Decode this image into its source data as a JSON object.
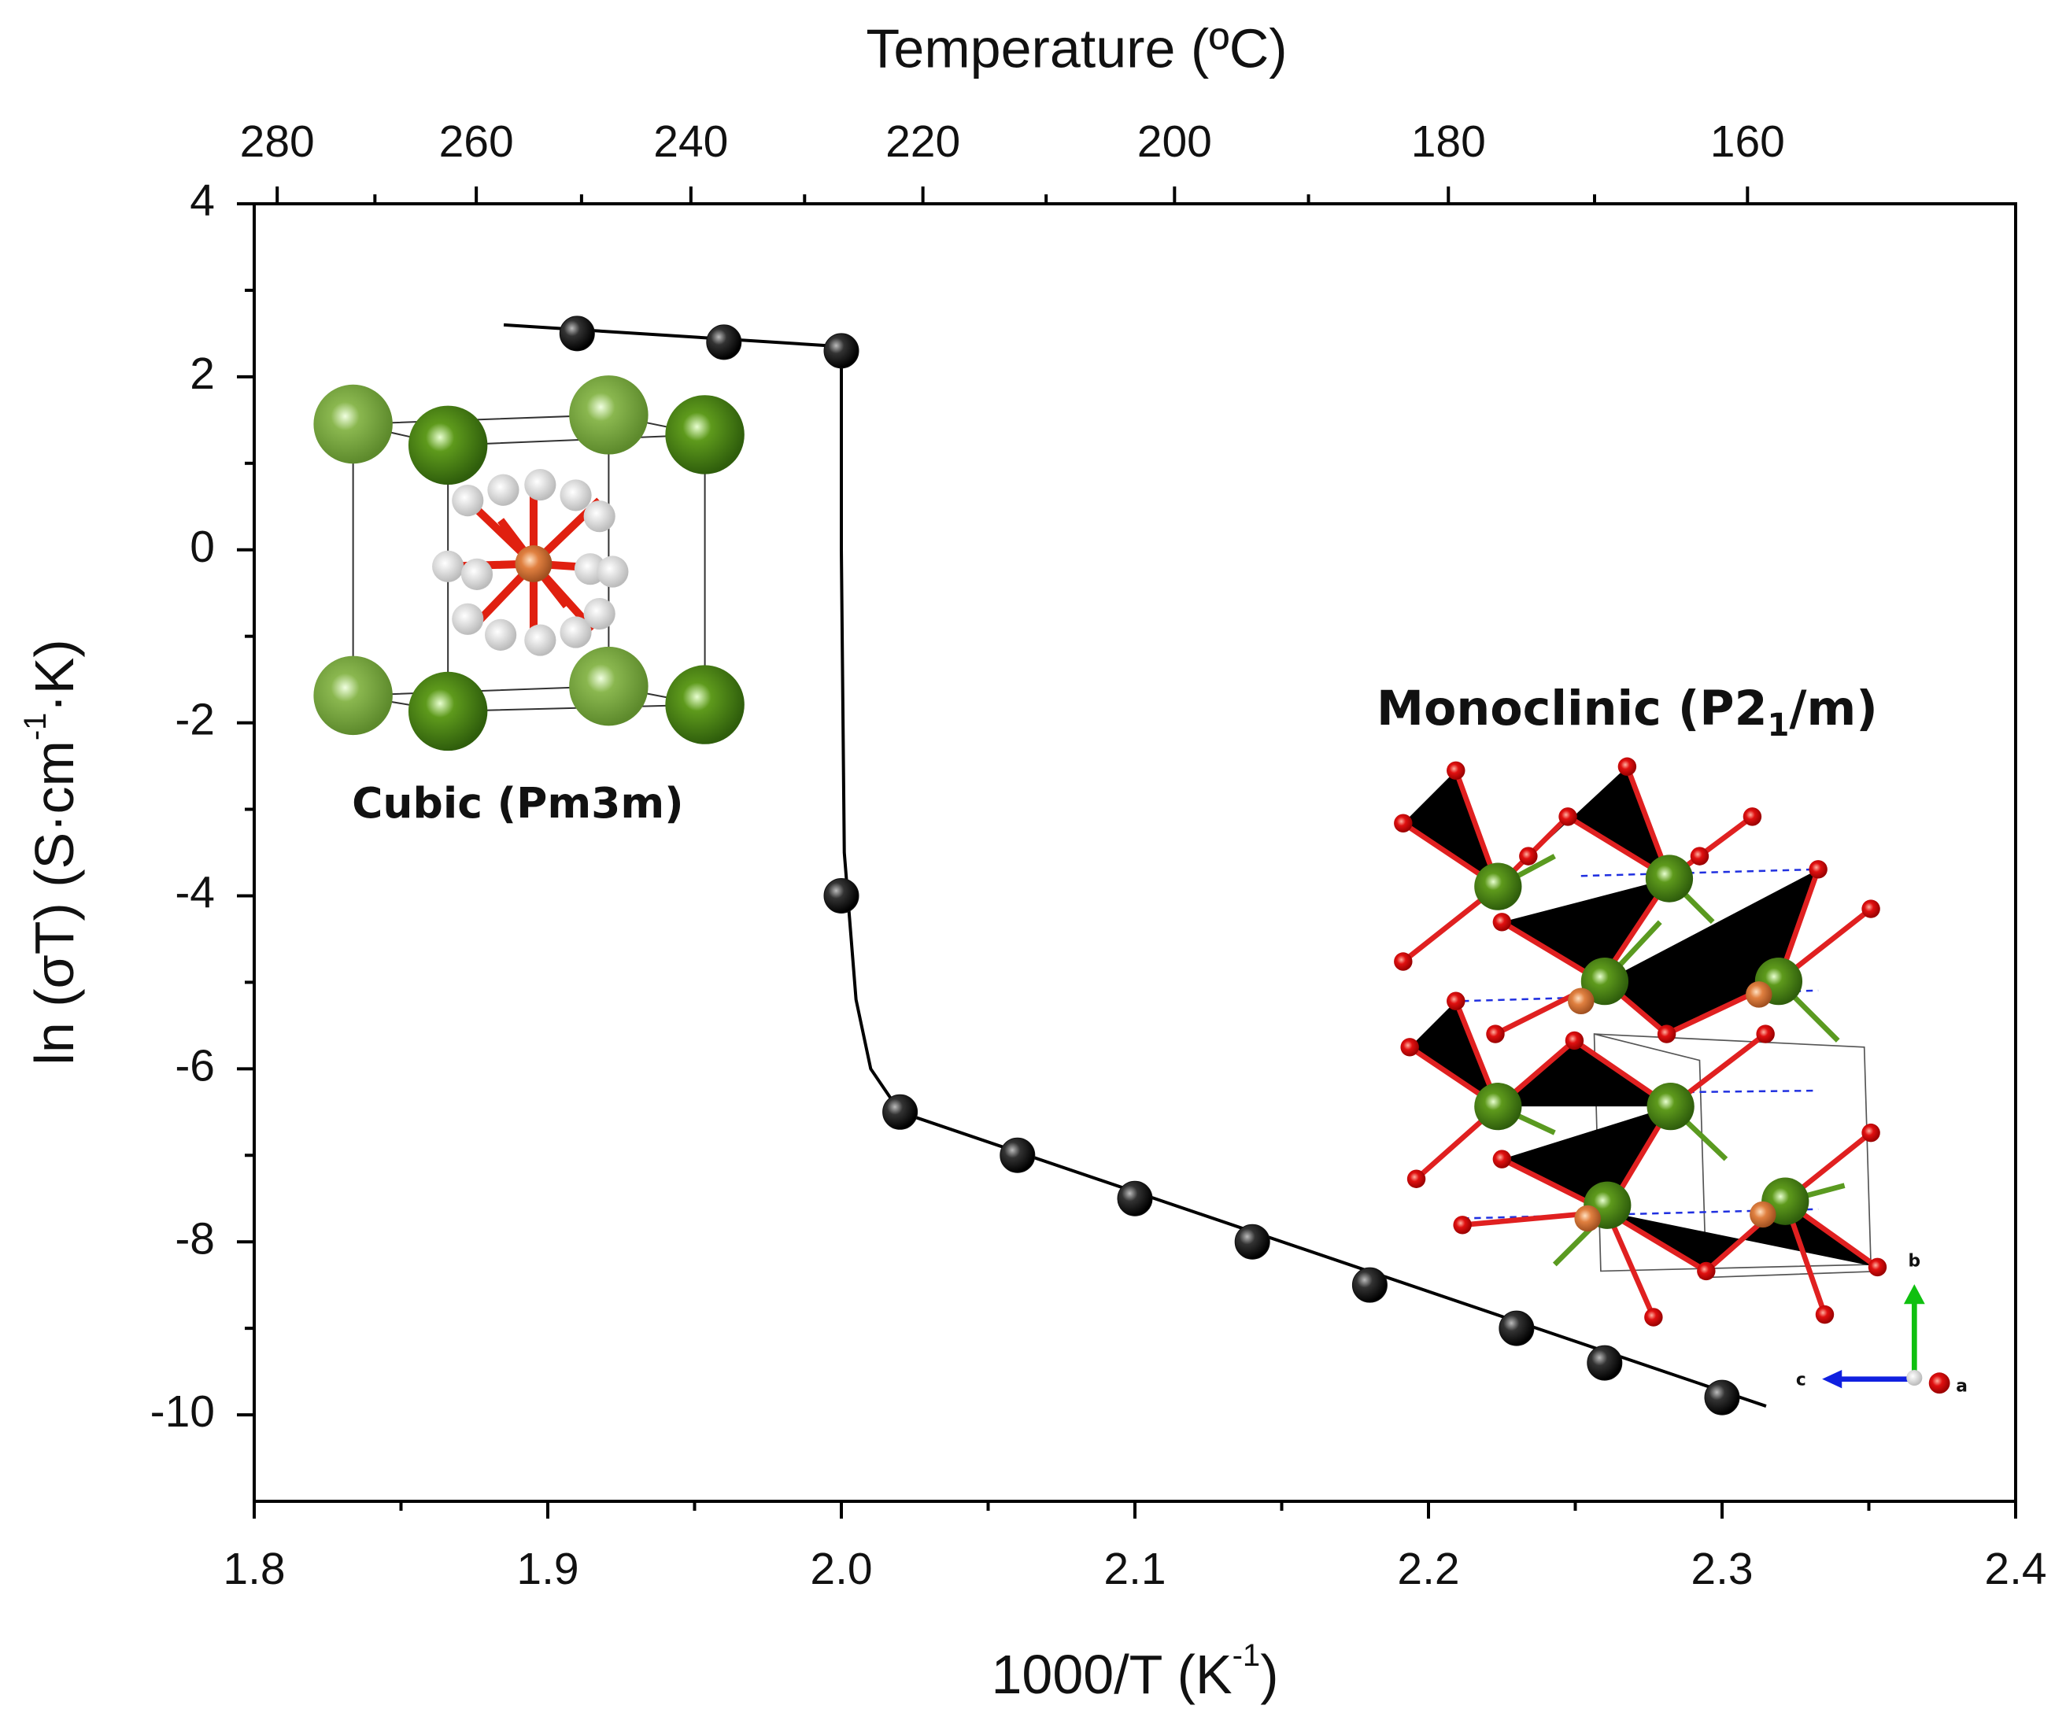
{
  "chart_data": {
    "type": "scatter",
    "x_label": [
      "1000/T (K",
      "-1",
      ")"
    ],
    "y_label": [
      "ln (σT) (S·cm",
      "-1",
      "·K)"
    ],
    "x2_label": "Temperature (ºC)",
    "xlim": [
      1.8,
      2.4
    ],
    "xticks": [
      1.8,
      1.9,
      {
        "value": 2,
        "label": "2.0"
      },
      2.1,
      2.2,
      2.3,
      2.4
    ],
    "x2ticks": [
      280,
      260,
      240,
      220,
      200,
      180,
      160
    ],
    "ylim": [
      -11,
      4
    ],
    "yticks": [
      -10,
      -8,
      -6,
      -4,
      -2,
      0,
      2,
      4
    ],
    "series": [
      {
        "marker": "sphere",
        "color": "#111111",
        "x": [
          1.91,
          1.96,
          2.0,
          2.0,
          2.02,
          2.06,
          2.1,
          2.14,
          2.18,
          2.23,
          2.26,
          2.3
        ],
        "values": [
          2.5,
          2.4,
          2.3,
          -4.0,
          -6.5,
          -7.0,
          -7.5,
          -8.0,
          -8.5,
          -9.0,
          -9.4,
          -9.8
        ]
      },
      {
        "marker": "line",
        "color": "#000000",
        "x": [
          1.885,
          2.0,
          2.0,
          2.001,
          2.005,
          2.01,
          2.02,
          2.315
        ],
        "values": [
          2.6,
          2.35,
          0,
          -3.5,
          -5.2,
          -6.0,
          -6.5,
          -9.9
        ]
      }
    ],
    "annotations": {
      "cubic": "Cubic (Pm3m)",
      "monoclinic": [
        "Monoclinic (P2",
        "1",
        "/m)"
      ],
      "axes": [
        "b",
        "c",
        "a"
      ]
    }
  }
}
